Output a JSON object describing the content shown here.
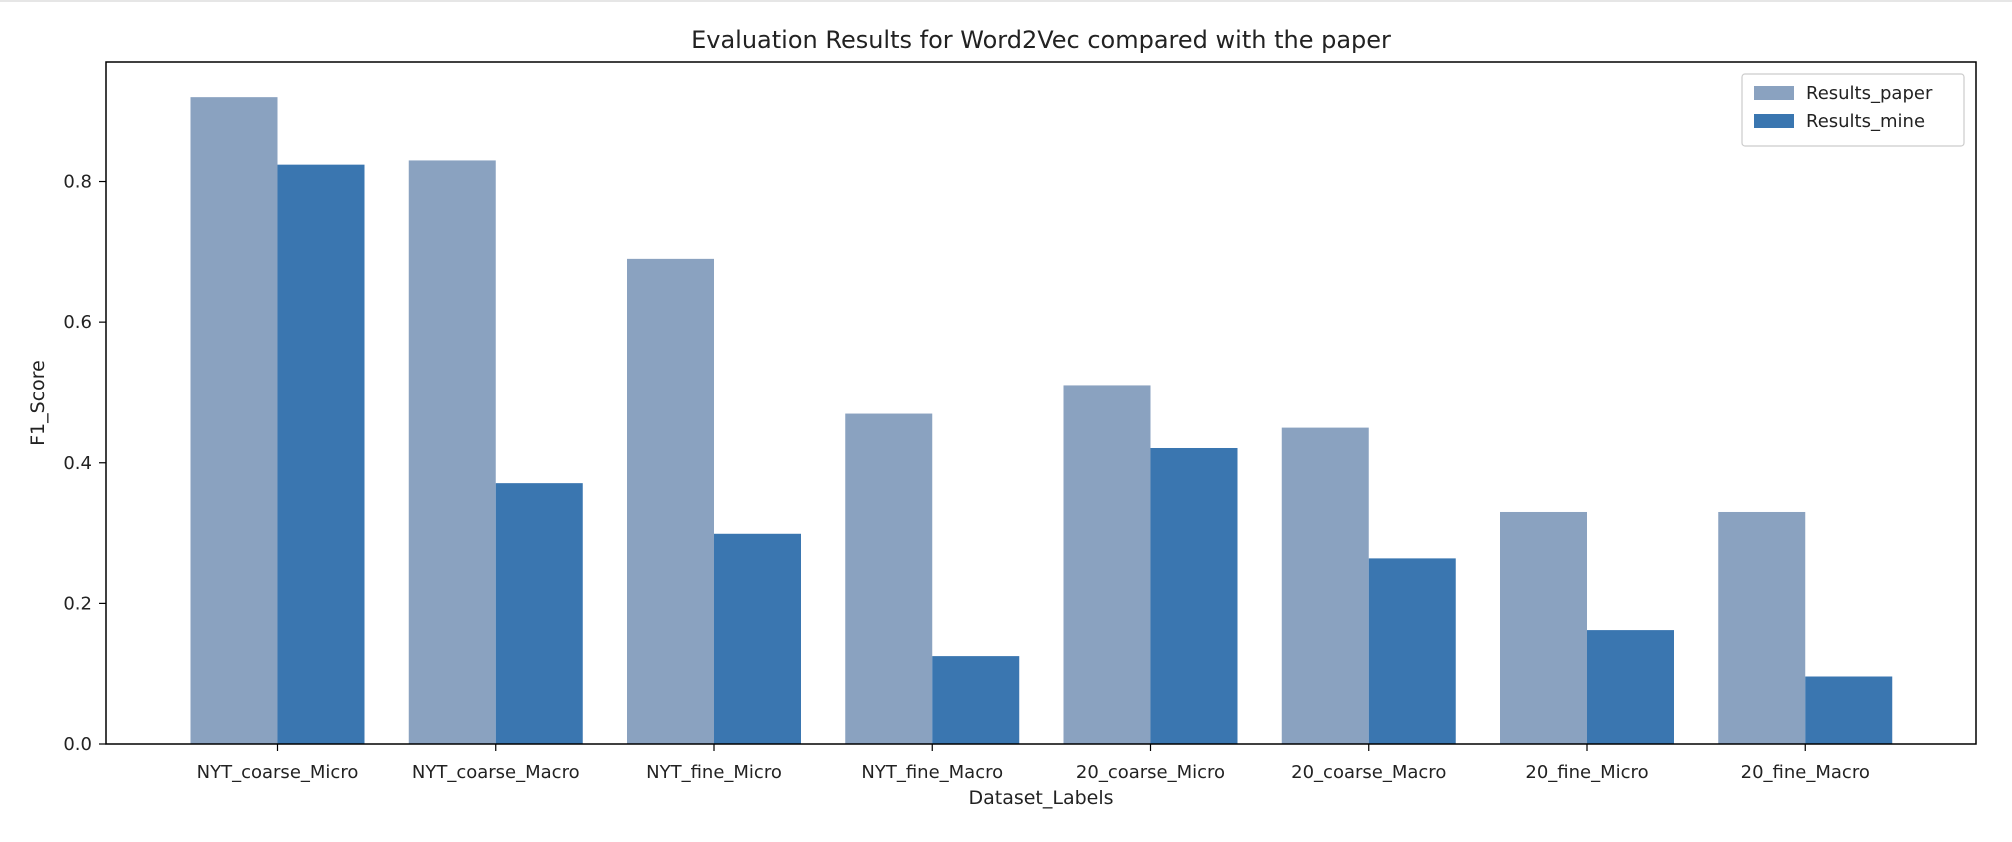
{
  "chart_data": {
    "type": "bar",
    "title": "Evaluation Results for Word2Vec compared with the paper",
    "xlabel": "Dataset_Labels",
    "ylabel": "F1_Score",
    "ylim": [
      0,
      0.97
    ],
    "yticks": [
      0.0,
      0.2,
      0.4,
      0.6,
      0.8
    ],
    "ytick_labels": [
      "0.0",
      "0.2",
      "0.4",
      "0.6",
      "0.8"
    ],
    "grid": false,
    "legend_position": "top-right",
    "categories": [
      "NYT_coarse_Micro",
      "NYT_coarse_Macro",
      "NYT_fine_Micro",
      "NYT_fine_Macro",
      "20_coarse_Micro",
      "20_coarse_Macro",
      "20_fine_Micro",
      "20_fine_Macro"
    ],
    "series": [
      {
        "name": "Results_paper",
        "color": "#8aa2c0",
        "values": [
          0.92,
          0.83,
          0.69,
          0.47,
          0.51,
          0.45,
          0.33,
          0.33
        ]
      },
      {
        "name": "Results_mine",
        "color": "#3a76b0",
        "values": [
          0.824,
          0.371,
          0.299,
          0.125,
          0.421,
          0.264,
          0.162,
          0.096
        ]
      }
    ]
  }
}
